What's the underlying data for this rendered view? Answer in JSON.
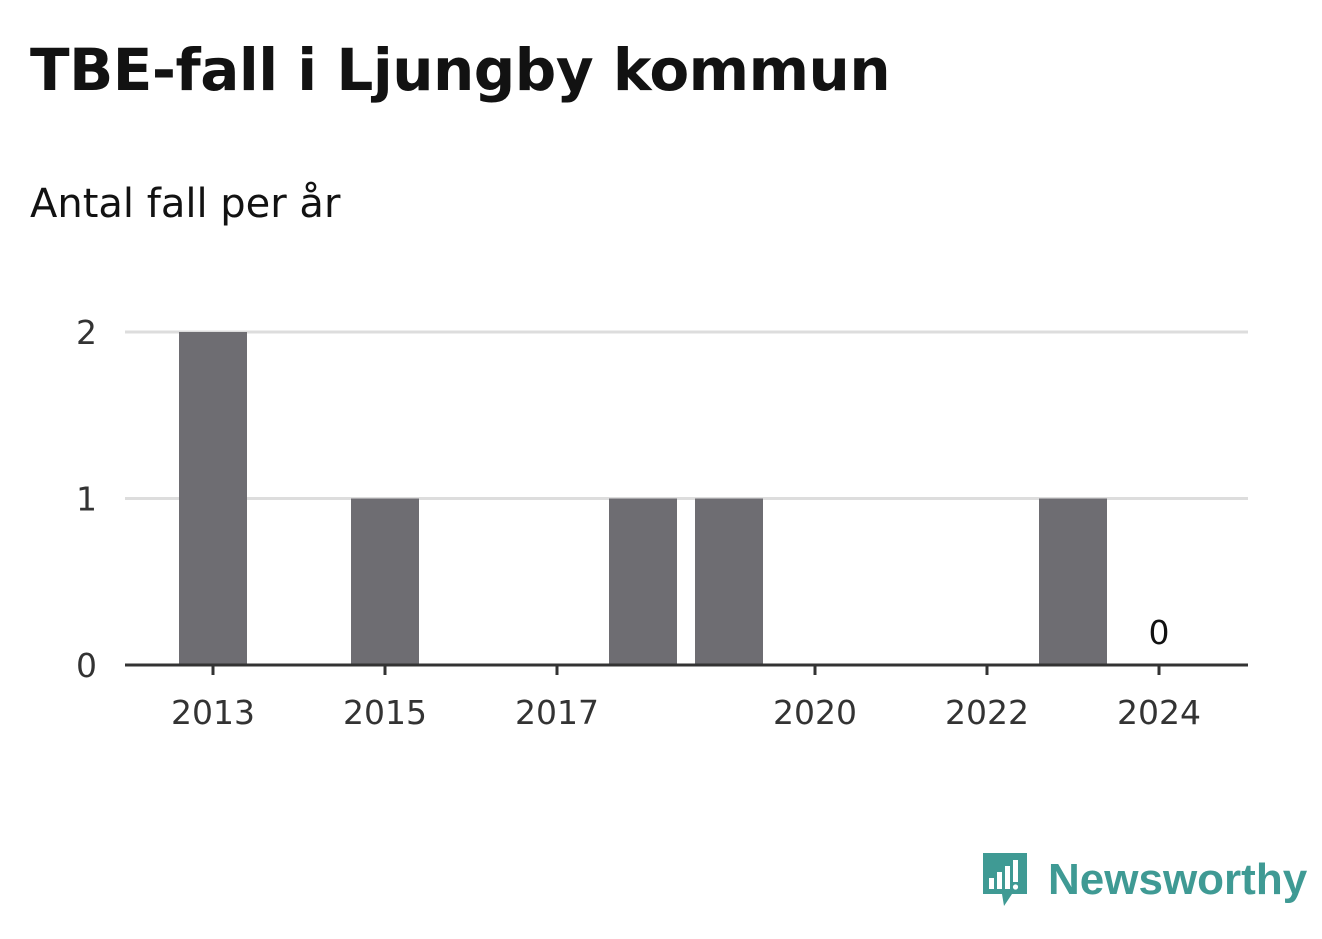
{
  "chart_data": {
    "type": "bar",
    "title": "TBE-fall i Ljungby kommun",
    "subtitle": "Antal fall per år",
    "xlabel": "",
    "ylabel": "",
    "x": [
      2013,
      2014,
      2015,
      2016,
      2017,
      2018,
      2019,
      2020,
      2021,
      2022,
      2023,
      2024
    ],
    "values": [
      2,
      0,
      1,
      0,
      0,
      1,
      1,
      0,
      0,
      0,
      1,
      0
    ],
    "x_ticks": [
      "2013",
      "2015",
      "2017",
      "2020",
      "2022",
      "2024"
    ],
    "y_ticks": [
      "0",
      "1",
      "2"
    ],
    "ylim": [
      0,
      2
    ],
    "grid": true,
    "annotations": [
      {
        "x": 2024,
        "text": "0"
      }
    ],
    "bar_color": "#6e6d72",
    "grid_color": "#dddddd",
    "axis_color": "#333333"
  },
  "brand": {
    "name": "Newsworthy",
    "color": "#3f9a94",
    "icon": "newsworthy-logo-icon"
  }
}
